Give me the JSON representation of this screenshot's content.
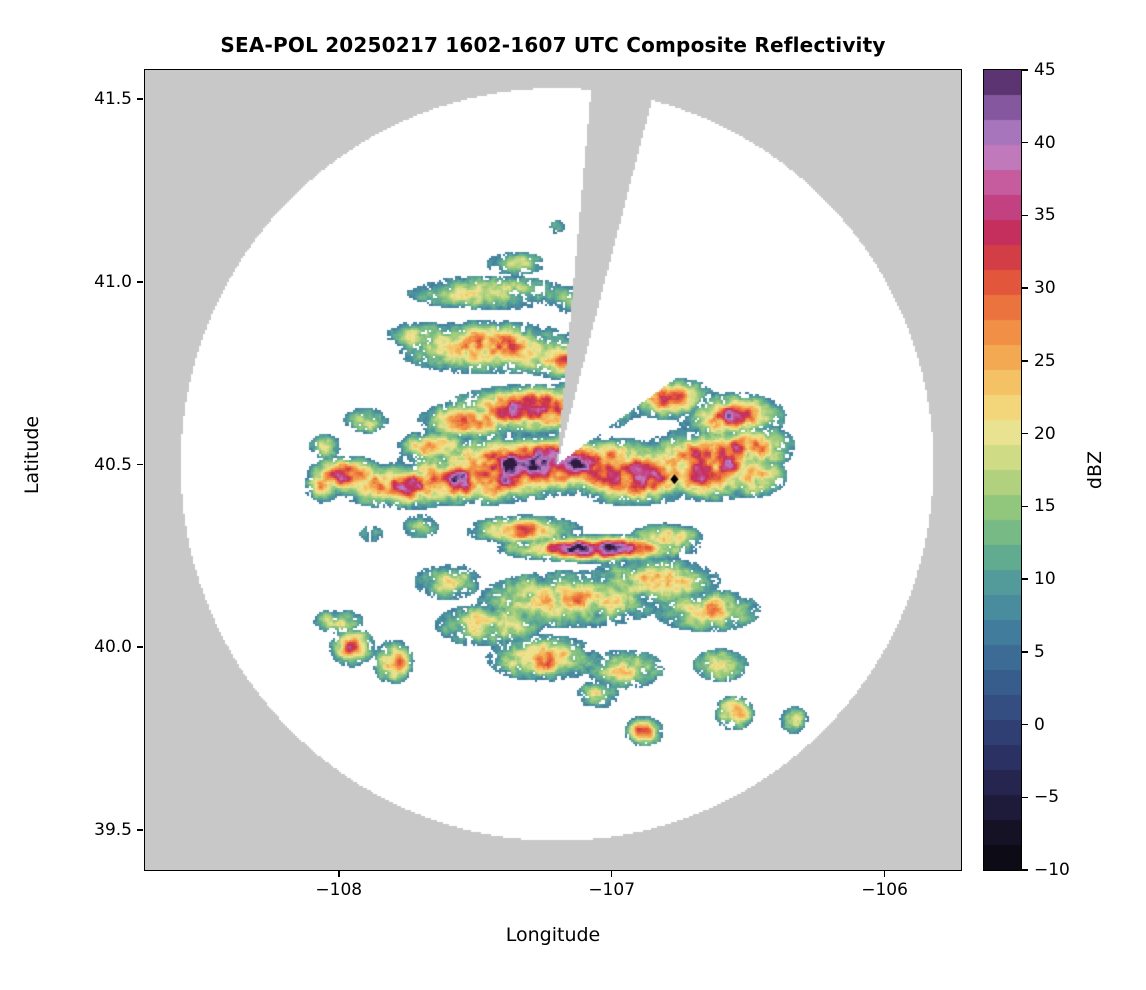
{
  "chart_data": {
    "type": "heatmap",
    "title": "SEA-POL 20250217 1602-1607 UTC Composite Reflectivity",
    "xlabel": "Longitude",
    "ylabel": "Latitude",
    "xlim": [
      -108.71,
      -105.72
    ],
    "ylim": [
      39.39,
      41.58
    ],
    "xticks": [
      -108,
      -107,
      -106
    ],
    "xtick_labels": [
      "−108",
      "−107",
      "−106"
    ],
    "yticks": [
      39.5,
      40.0,
      40.5,
      41.0,
      41.5
    ],
    "ytick_labels": [
      "39.5",
      "40.0",
      "40.5",
      "41.0",
      "41.5"
    ],
    "grid": false,
    "outside_range_color": "#c8c8c8",
    "no_echo_color": "#ffffff",
    "colorbar": {
      "label": "dBZ",
      "min": -10,
      "max": 45,
      "ticks": [
        45,
        40,
        35,
        30,
        25,
        20,
        15,
        10,
        5,
        0,
        -5,
        -10
      ],
      "tick_labels": [
        "45",
        "40",
        "35",
        "30",
        "25",
        "20",
        "15",
        "10",
        "5",
        "0",
        "−5",
        "−10"
      ],
      "position": "right"
    },
    "radar": {
      "center_lon": -107.2,
      "center_lat": 40.5,
      "radius_lat_deg": 1.03,
      "blocked_sector_deg": [
        5.2,
        14.6
      ],
      "no_echo_sector_deg": [
        14.6,
        54.0
      ]
    },
    "marker": {
      "lon": -106.77,
      "lat": 40.46,
      "shape": "diamond",
      "color": "#000000"
    },
    "colormap_stops": [
      [
        -10,
        "#0a0a0f"
      ],
      [
        -7,
        "#17142a"
      ],
      [
        -5,
        "#221f44"
      ],
      [
        -3,
        "#2a2c5c"
      ],
      [
        -1,
        "#303c70"
      ],
      [
        1,
        "#344d80"
      ],
      [
        3,
        "#385e8e"
      ],
      [
        5,
        "#3d7099"
      ],
      [
        7,
        "#44839f"
      ],
      [
        9,
        "#4e959e"
      ],
      [
        11,
        "#5ca794"
      ],
      [
        13,
        "#74b986"
      ],
      [
        15,
        "#93c87d"
      ],
      [
        17,
        "#b8d47f"
      ],
      [
        19,
        "#dbdf89"
      ],
      [
        20.5,
        "#efe494"
      ],
      [
        22,
        "#f4d476"
      ],
      [
        24,
        "#f4bb5f"
      ],
      [
        26,
        "#f29e4b"
      ],
      [
        28,
        "#ef7f3f"
      ],
      [
        30,
        "#e65e3b"
      ],
      [
        32,
        "#d43f45"
      ],
      [
        33.5,
        "#c52d57"
      ],
      [
        35,
        "#c23a78"
      ],
      [
        36.5,
        "#c44f90"
      ],
      [
        38,
        "#c868aa"
      ],
      [
        39.5,
        "#bc82c4"
      ],
      [
        41,
        "#a173bb"
      ],
      [
        42.5,
        "#84569d"
      ],
      [
        44,
        "#63397a"
      ],
      [
        45,
        "#2f1a40"
      ]
    ],
    "echo_cells": [
      [
        -107.25,
        40.5,
        0.4,
        0.065,
        45
      ],
      [
        -107.5,
        40.46,
        0.3,
        0.055,
        40
      ],
      [
        -107.75,
        40.44,
        0.22,
        0.05,
        36
      ],
      [
        -107.97,
        40.47,
        0.12,
        0.045,
        33
      ],
      [
        -108.06,
        40.44,
        0.06,
        0.04,
        26
      ],
      [
        -106.92,
        40.47,
        0.22,
        0.065,
        37
      ],
      [
        -106.66,
        40.5,
        0.2,
        0.08,
        39
      ],
      [
        -106.48,
        40.47,
        0.1,
        0.05,
        32
      ],
      [
        -106.5,
        40.55,
        0.14,
        0.06,
        33
      ],
      [
        -106.56,
        40.63,
        0.16,
        0.055,
        34
      ],
      [
        -106.78,
        40.68,
        0.14,
        0.05,
        28
      ],
      [
        -107.25,
        40.65,
        0.28,
        0.055,
        40
      ],
      [
        -107.52,
        40.62,
        0.16,
        0.045,
        30
      ],
      [
        -107.02,
        40.7,
        0.16,
        0.045,
        28
      ],
      [
        -107.65,
        40.55,
        0.12,
        0.04,
        26
      ],
      [
        -107.05,
        40.27,
        0.28,
        0.03,
        43
      ],
      [
        -107.32,
        40.32,
        0.18,
        0.035,
        30
      ],
      [
        -106.8,
        40.3,
        0.12,
        0.035,
        26
      ],
      [
        -107.45,
        40.82,
        0.28,
        0.06,
        33
      ],
      [
        -107.15,
        40.79,
        0.18,
        0.05,
        29
      ],
      [
        -107.7,
        40.85,
        0.12,
        0.04,
        22
      ],
      [
        -107.45,
        40.97,
        0.28,
        0.045,
        22
      ],
      [
        -107.05,
        40.95,
        0.18,
        0.045,
        20
      ],
      [
        -107.35,
        41.05,
        0.12,
        0.035,
        16
      ],
      [
        -106.9,
        40.85,
        0.1,
        0.04,
        18
      ],
      [
        -107.15,
        40.13,
        0.3,
        0.07,
        26
      ],
      [
        -106.85,
        40.18,
        0.22,
        0.06,
        25
      ],
      [
        -106.65,
        40.1,
        0.18,
        0.055,
        23
      ],
      [
        -107.45,
        40.06,
        0.18,
        0.055,
        24
      ],
      [
        -107.25,
        39.97,
        0.18,
        0.055,
        28
      ],
      [
        -106.95,
        39.94,
        0.13,
        0.05,
        23
      ],
      [
        -106.6,
        39.95,
        0.1,
        0.045,
        20
      ],
      [
        -107.6,
        40.18,
        0.12,
        0.05,
        20
      ],
      [
        -107.95,
        40.0,
        0.07,
        0.045,
        31
      ],
      [
        -107.8,
        39.96,
        0.06,
        0.05,
        35
      ],
      [
        -108.0,
        40.07,
        0.09,
        0.035,
        20
      ],
      [
        -106.88,
        39.77,
        0.06,
        0.035,
        32
      ],
      [
        -106.55,
        39.82,
        0.06,
        0.04,
        31
      ],
      [
        -106.33,
        39.8,
        0.05,
        0.035,
        22
      ],
      [
        -108.05,
        40.55,
        0.06,
        0.035,
        18
      ],
      [
        -107.9,
        40.62,
        0.08,
        0.035,
        20
      ],
      [
        -107.2,
        41.15,
        0.03,
        0.02,
        16
      ],
      [
        -107.7,
        40.33,
        0.08,
        0.04,
        14
      ],
      [
        -107.88,
        40.31,
        0.06,
        0.03,
        12
      ],
      [
        -107.05,
        39.87,
        0.08,
        0.04,
        18
      ]
    ]
  }
}
